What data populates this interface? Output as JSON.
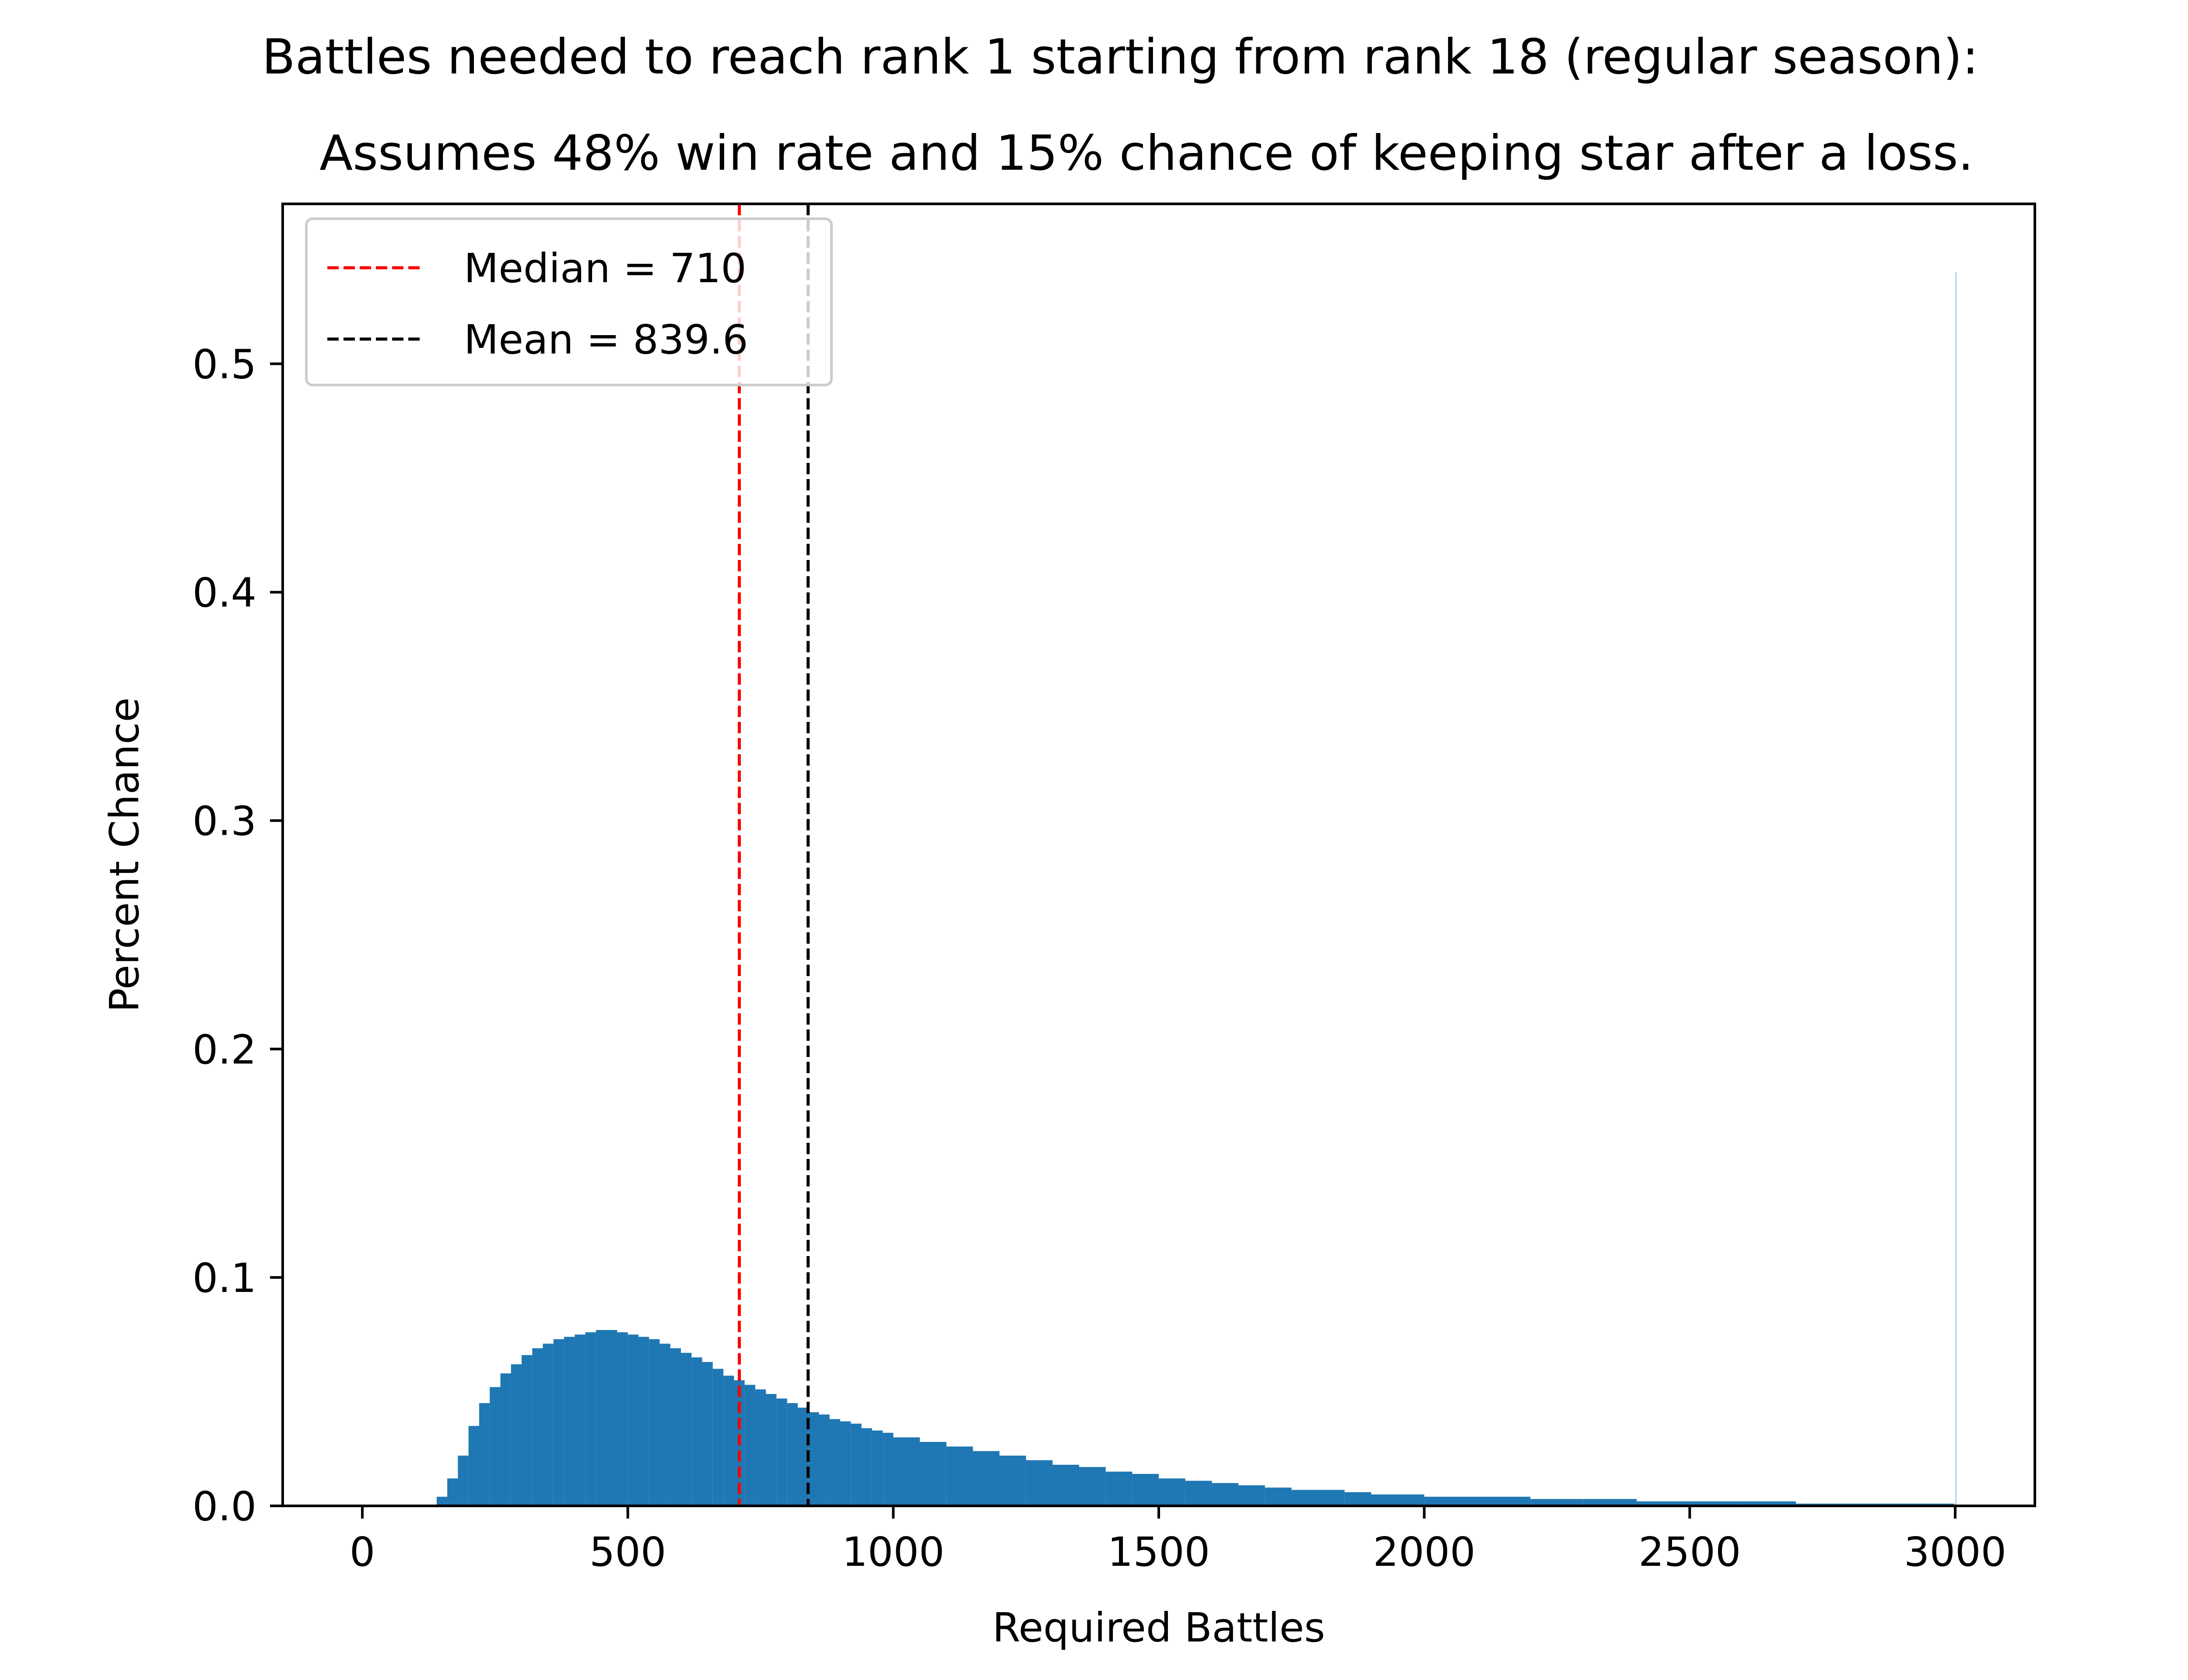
{
  "chart_data": {
    "type": "bar",
    "title": "Battles needed to reach rank 1 starting from rank 18 (regular season):",
    "subtitle": "Assumes 48% win rate and 15% chance of keeping star after a loss.",
    "xlabel": "Required Battles",
    "ylabel": "Percent Chance",
    "xlim": [
      -150,
      3150
    ],
    "ylim": [
      0,
      0.57
    ],
    "x_ticks": [
      0,
      500,
      1000,
      1500,
      2000,
      2500,
      3000
    ],
    "x_tick_labels": [
      "0",
      "500",
      "1000",
      "1500",
      "2000",
      "2500",
      "3000"
    ],
    "y_ticks": [
      0.0,
      0.1,
      0.2,
      0.3,
      0.4,
      0.5
    ],
    "y_tick_labels": [
      "0.0",
      "0.1",
      "0.2",
      "0.3",
      "0.4",
      "0.5"
    ],
    "bar_color": "#1f77b4",
    "outlier_bar_color": "#b3cfe0",
    "grid": false,
    "legend_placement": "upper-left",
    "series": [
      {
        "kind": "histogram",
        "categories": [
          140,
          160,
          180,
          200,
          220,
          240,
          260,
          280,
          300,
          320,
          340,
          360,
          380,
          400,
          420,
          440,
          460,
          480,
          500,
          520,
          540,
          560,
          580,
          600,
          620,
          640,
          660,
          680,
          700,
          720,
          740,
          760,
          780,
          800,
          820,
          840,
          860,
          880,
          900,
          920,
          940,
          960,
          980,
          1000,
          1050,
          1100,
          1150,
          1200,
          1250,
          1300,
          1350,
          1400,
          1450,
          1500,
          1550,
          1600,
          1650,
          1700,
          1750,
          1800,
          1850,
          1900,
          1950,
          2000,
          2100,
          2200,
          2300,
          2400,
          2500,
          2600,
          2700,
          2800,
          2900,
          2990,
          3000
        ],
        "values": [
          0.004,
          0.012,
          0.022,
          0.035,
          0.045,
          0.052,
          0.058,
          0.062,
          0.066,
          0.069,
          0.071,
          0.073,
          0.074,
          0.075,
          0.076,
          0.077,
          0.077,
          0.076,
          0.075,
          0.074,
          0.073,
          0.071,
          0.069,
          0.067,
          0.065,
          0.063,
          0.06,
          0.057,
          0.055,
          0.053,
          0.051,
          0.049,
          0.047,
          0.045,
          0.043,
          0.041,
          0.04,
          0.038,
          0.037,
          0.036,
          0.034,
          0.033,
          0.032,
          0.03,
          0.028,
          0.026,
          0.024,
          0.022,
          0.02,
          0.018,
          0.017,
          0.015,
          0.014,
          0.012,
          0.011,
          0.01,
          0.009,
          0.008,
          0.007,
          0.007,
          0.006,
          0.005,
          0.005,
          0.004,
          0.004,
          0.003,
          0.003,
          0.002,
          0.002,
          0.002,
          0.001,
          0.001,
          0.001,
          0.001,
          0.54
        ]
      },
      {
        "name": "Median = 710",
        "kind": "vline",
        "x": 710,
        "color": "#ff0000",
        "dash": "dashed"
      },
      {
        "name": "Mean = 839.6",
        "kind": "vline",
        "x": 839.6,
        "color": "#000000",
        "dash": "dashed"
      }
    ]
  }
}
